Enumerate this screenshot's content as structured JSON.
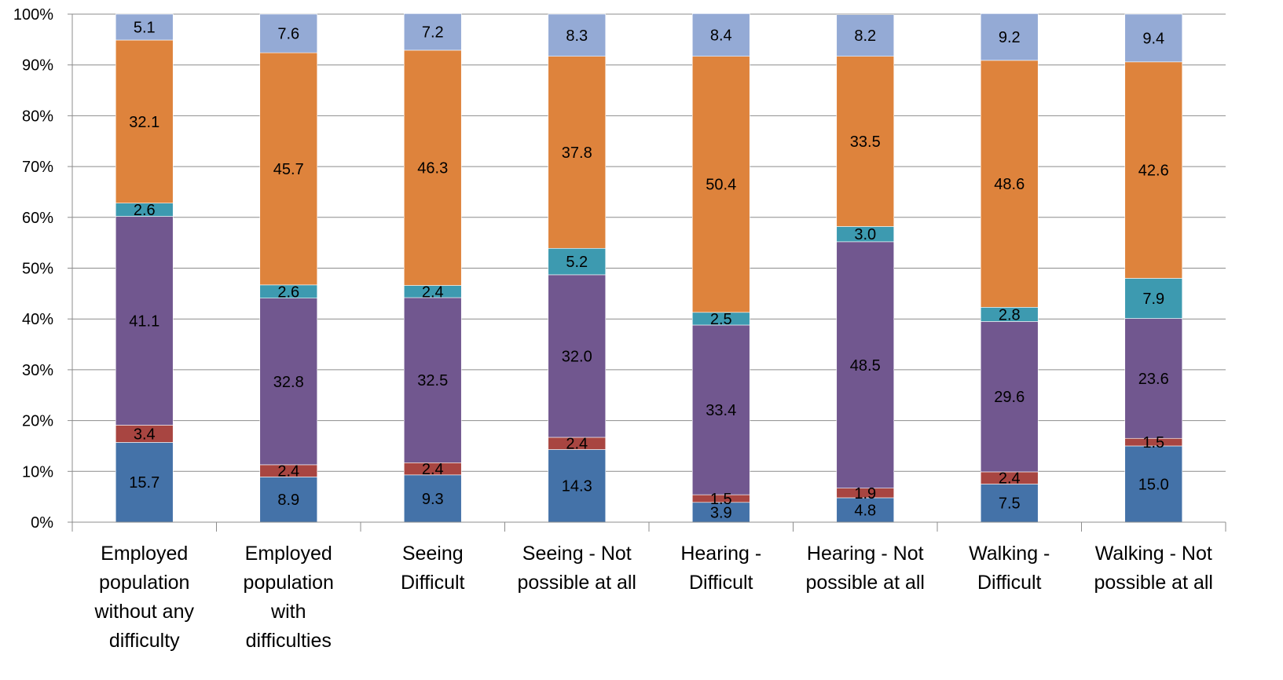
{
  "chart_data": {
    "type": "bar",
    "stacked": true,
    "percent_axis": true,
    "title": "",
    "xlabel": "",
    "ylabel": "",
    "ylim": [
      0,
      100
    ],
    "y_ticks": [
      "0%",
      "10%",
      "20%",
      "30%",
      "40%",
      "50%",
      "60%",
      "70%",
      "80%",
      "90%",
      "100%"
    ],
    "grid": true,
    "legend": "none",
    "categories": [
      [
        "Employed",
        "population",
        "without any",
        "difficulty"
      ],
      [
        "Employed",
        "population",
        "with",
        "difficulties"
      ],
      [
        "Seeing",
        "Difficult"
      ],
      [
        "Seeing - Not",
        "possible at all"
      ],
      [
        "Hearing -",
        "Difficult"
      ],
      [
        "Hearing - Not",
        "possible at all"
      ],
      [
        "Walking -",
        "Difficult"
      ],
      [
        "Walking - Not",
        "possible at all"
      ]
    ],
    "series": [
      {
        "color": "#4472A8",
        "values": [
          15.7,
          8.9,
          9.3,
          14.3,
          3.9,
          4.8,
          7.5,
          15.0
        ],
        "labels": [
          "15.7",
          "8.9",
          "9.3",
          "14.3",
          "3.9",
          "4.8",
          "7.5",
          "15.0"
        ]
      },
      {
        "color": "#A84541",
        "values": [
          3.4,
          2.4,
          2.4,
          2.4,
          1.5,
          1.9,
          2.4,
          1.5
        ],
        "labels": [
          "3.4",
          "2.4",
          "2.4",
          "2.4",
          "1.5",
          "1.9",
          "2.4",
          "1.5"
        ]
      },
      {
        "color": "#71578F",
        "values": [
          41.1,
          32.8,
          32.5,
          32.0,
          33.4,
          48.5,
          29.6,
          23.6
        ],
        "labels": [
          "41.1",
          "32.8",
          "32.5",
          "32.0",
          "33.4",
          "48.5",
          "29.6",
          "23.6"
        ]
      },
      {
        "color": "#3D9AB0",
        "values": [
          2.6,
          2.6,
          2.4,
          5.2,
          2.5,
          3.0,
          2.8,
          7.9
        ],
        "labels": [
          "2.6",
          "2.6",
          "2.4",
          "5.2",
          "2.5",
          "3.0",
          "2.8",
          "7.9"
        ]
      },
      {
        "color": "#DE833C",
        "values": [
          32.1,
          45.7,
          46.3,
          37.8,
          50.4,
          33.5,
          48.6,
          42.6
        ],
        "labels": [
          "32.1",
          "45.7",
          "46.3",
          "37.8",
          "50.4",
          "33.5",
          "48.6",
          "42.6"
        ]
      },
      {
        "color": "#94AAD5",
        "values": [
          5.1,
          7.6,
          7.2,
          8.3,
          8.4,
          8.2,
          9.2,
          9.4
        ],
        "labels": [
          "5.1",
          "7.6",
          "7.2",
          "8.3",
          "8.4",
          "8.2",
          "9.2",
          "9.4"
        ]
      }
    ]
  }
}
